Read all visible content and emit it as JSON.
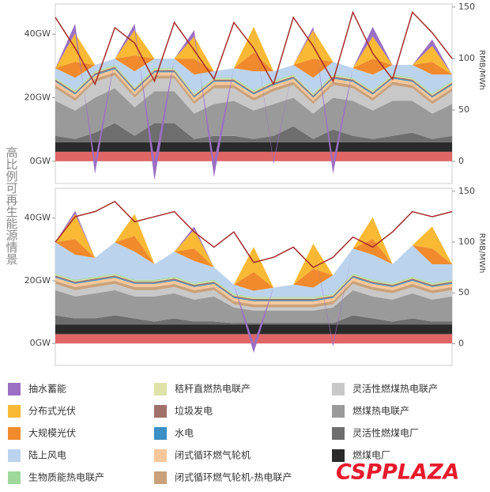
{
  "side_label": "高比例可再生能源情景",
  "watermark": "CSPPLAZA",
  "chart_data": [
    {
      "type": "area",
      "ylim": [
        -7,
        49.5
      ],
      "yticks": [
        {
          "value": 0,
          "label": "0GW"
        },
        {
          "value": 20,
          "label": "20GW"
        },
        {
          "value": 40,
          "label": "40GW"
        }
      ],
      "y2lim": [
        -21.5,
        153
      ],
      "y2ticks": [
        0,
        50,
        100,
        150
      ],
      "y2_label": "RMB/MWh",
      "series": [
        {
          "name": "抽水蓄能",
          "color": "#9b6fc4",
          "values": [
            0,
            3,
            -4,
            0,
            2,
            -6,
            0,
            2,
            -5,
            0,
            0,
            -1,
            0,
            1,
            -4,
            0,
            3,
            0,
            0,
            2,
            0
          ]
        },
        {
          "name": "分布式光伏",
          "color": "#f9b934",
          "values": [
            0,
            9,
            0,
            0,
            8,
            0,
            0,
            7,
            0,
            0,
            8,
            0,
            0,
            9,
            0,
            0,
            7,
            0,
            0,
            5,
            0
          ]
        },
        {
          "name": "大规模光伏",
          "color": "#f08a2c",
          "values": [
            0,
            5,
            0,
            0,
            5,
            0,
            0,
            5,
            0,
            0,
            6,
            0,
            0,
            6,
            0,
            0,
            5,
            0,
            0,
            4,
            0
          ]
        },
        {
          "name": "陆上风电",
          "color": "#bcd3ee",
          "values": [
            3,
            4,
            2,
            2,
            5,
            3,
            3,
            6,
            2,
            3,
            6,
            3,
            3,
            5,
            4,
            3,
            5,
            3,
            4,
            6,
            2
          ]
        },
        {
          "name": "生物质能热电联产",
          "color": "#9ed99b",
          "values": [
            0.3,
            0.3,
            0.3,
            0.3,
            0.3,
            0.3,
            0.3,
            0.3,
            0.3,
            0.3,
            0.3,
            0.3,
            0.3,
            0.3,
            0.3,
            0.3,
            0.3,
            0.3,
            0.3,
            0.3,
            0.3
          ]
        },
        {
          "name": "秸秆直燃热电联产",
          "color": "#dfe3a8",
          "values": [
            0.3,
            0.3,
            0.3,
            0.3,
            0.3,
            0.3,
            0.3,
            0.3,
            0.3,
            0.3,
            0.3,
            0.3,
            0.3,
            0.3,
            0.3,
            0.3,
            0.3,
            0.3,
            0.3,
            0.3,
            0.3
          ]
        },
        {
          "name": "垃圾发电",
          "color": "#a0706a",
          "values": [
            0.4,
            0.4,
            0.4,
            0.4,
            0.4,
            0.4,
            0.4,
            0.4,
            0.4,
            0.4,
            0.4,
            0.4,
            0.4,
            0.4,
            0.4,
            0.4,
            0.4,
            0.4,
            0.4,
            0.4,
            0.4
          ]
        },
        {
          "name": "水电",
          "color": "#3a8fc4",
          "values": [
            0.3,
            0.3,
            0.3,
            0.3,
            0.3,
            0.3,
            0.3,
            0.3,
            0.3,
            0.3,
            0.3,
            0.3,
            0.3,
            0.3,
            0.3,
            0.3,
            0.3,
            0.3,
            0.3,
            0.3,
            0.3
          ]
        },
        {
          "name": "闭式循环燃气轮机",
          "color": "#f7c79a",
          "values": [
            1,
            1,
            1,
            1,
            1,
            1,
            1,
            1,
            1,
            1,
            1,
            1,
            1,
            1,
            1,
            1,
            1,
            1,
            1,
            1,
            1
          ]
        },
        {
          "name": "闭式循环燃气轮机-热电联产",
          "color": "#c9a27c",
          "values": [
            1,
            1,
            1,
            1,
            1,
            1,
            1,
            1,
            1,
            1,
            1,
            1,
            1,
            1,
            1,
            1,
            1,
            1,
            1,
            1,
            1
          ]
        },
        {
          "name": "灵活性燃煤热电联产",
          "color": "#c8c8c8",
          "values": [
            4,
            3,
            5,
            4,
            3,
            4,
            4,
            3,
            5,
            4,
            3,
            4,
            4,
            3,
            4,
            4,
            3,
            5,
            4,
            3,
            4
          ]
        },
        {
          "name": "燃煤热电联产",
          "color": "#9a9a9a",
          "values": [
            11,
            9,
            11,
            11,
            9,
            10,
            10,
            8,
            10,
            11,
            9,
            10,
            9,
            8,
            10,
            11,
            9,
            11,
            10,
            8,
            10
          ]
        },
        {
          "name": "灵活性燃煤电厂",
          "color": "#6e6e6e",
          "values": [
            2,
            1,
            3,
            6,
            2,
            6,
            6,
            1,
            2,
            2,
            1,
            2,
            5,
            1,
            4,
            2,
            1,
            2,
            3,
            1,
            2
          ]
        },
        {
          "name": "燃煤电厂",
          "color": "#2a2a2a",
          "values": [
            3,
            3,
            3,
            3,
            3,
            3,
            3,
            3,
            3,
            3,
            3,
            3,
            3,
            3,
            3,
            3,
            3,
            3,
            3,
            3,
            3
          ]
        },
        {
          "color": "#e06666",
          "values": [
            3,
            3,
            3,
            3,
            3,
            3,
            3,
            3,
            3,
            3,
            3,
            3,
            3,
            3,
            3,
            3,
            3,
            3,
            3,
            3,
            3
          ]
        },
        {
          "color": "#a52a2a",
          "axis": "y2",
          "values": [
            140,
            110,
            75,
            130,
            115,
            78,
            135,
            108,
            80,
            135,
            110,
            75,
            140,
            112,
            78,
            145,
            105,
            80,
            145,
            125,
            100
          ]
        }
      ]
    },
    {
      "type": "area",
      "ylim": [
        -7,
        49.5
      ],
      "yticks": [
        {
          "value": 0,
          "label": "0GW"
        },
        {
          "value": 20,
          "label": "20GW"
        },
        {
          "value": 40,
          "label": "40GW"
        }
      ],
      "y2lim": [
        -21.5,
        153
      ],
      "y2ticks": [
        0,
        50,
        100,
        150
      ],
      "y2_label": "RMB/MWh",
      "series": [
        {
          "name": "抽水蓄能",
          "color": "#9b6fc4",
          "values": [
            0,
            1,
            0,
            0,
            0,
            0,
            0,
            1,
            0,
            0,
            -3,
            0,
            0,
            0,
            -1,
            0,
            0,
            0,
            0,
            0,
            0
          ]
        },
        {
          "name": "分布式光伏",
          "color": "#f9b934",
          "values": [
            0,
            8,
            0,
            0,
            7,
            0,
            0,
            6,
            0,
            0,
            8,
            0,
            0,
            8,
            0,
            0,
            7,
            0,
            0,
            7,
            0
          ]
        },
        {
          "name": "大规模光伏",
          "color": "#f08a2c",
          "values": [
            0,
            5,
            0,
            0,
            5,
            0,
            0,
            4,
            0,
            0,
            6,
            0,
            0,
            6,
            0,
            0,
            5,
            0,
            0,
            5,
            0
          ]
        },
        {
          "name": "陆上风电",
          "color": "#bcd3ee",
          "values": [
            10,
            8,
            6,
            10,
            9,
            5,
            8,
            7,
            4,
            3,
            2,
            3,
            4,
            3,
            6,
            8,
            8,
            6,
            10,
            6,
            5
          ]
        },
        {
          "name": "生物质能热电联产",
          "color": "#9ed99b",
          "values": [
            0.3,
            0.3,
            0.3,
            0.3,
            0.3,
            0.3,
            0.3,
            0.3,
            0.3,
            0.3,
            0.3,
            0.3,
            0.3,
            0.3,
            0.3,
            0.3,
            0.3,
            0.3,
            0.3,
            0.3,
            0.3
          ]
        },
        {
          "name": "秸秆直燃热电联产",
          "color": "#dfe3a8",
          "values": [
            0.3,
            0.3,
            0.3,
            0.3,
            0.3,
            0.3,
            0.3,
            0.3,
            0.3,
            0.3,
            0.3,
            0.3,
            0.3,
            0.3,
            0.3,
            0.3,
            0.3,
            0.3,
            0.3,
            0.3,
            0.3
          ]
        },
        {
          "name": "垃圾发电",
          "color": "#a0706a",
          "values": [
            0.4,
            0.4,
            0.4,
            0.4,
            0.4,
            0.4,
            0.4,
            0.4,
            0.4,
            0.4,
            0.4,
            0.4,
            0.4,
            0.4,
            0.4,
            0.4,
            0.4,
            0.4,
            0.4,
            0.4,
            0.4
          ]
        },
        {
          "name": "水电",
          "color": "#3a8fc4",
          "values": [
            0.3,
            0.3,
            0.3,
            0.3,
            0.3,
            0.3,
            0.3,
            0.3,
            0.3,
            0.3,
            0.3,
            0.3,
            0.3,
            0.3,
            0.3,
            0.3,
            0.3,
            0.3,
            0.3,
            0.3,
            0.3
          ]
        },
        {
          "name": "闭式循环燃气轮机",
          "color": "#f7c79a",
          "values": [
            1,
            1,
            1,
            1,
            1,
            1,
            1,
            1,
            1,
            1,
            1,
            1,
            1,
            1,
            1,
            1,
            1,
            1,
            1,
            1,
            1
          ]
        },
        {
          "name": "闭式循环燃气轮机-热电联产",
          "color": "#c9a27c",
          "values": [
            1,
            1,
            1,
            1,
            1,
            1,
            1,
            1,
            1,
            1,
            1,
            1,
            1,
            1,
            1,
            1,
            1,
            1,
            1,
            1,
            1
          ]
        },
        {
          "name": "灵活性燃煤热电联产",
          "color": "#c8c8c8",
          "values": [
            2,
            2,
            2,
            2,
            2,
            2,
            2,
            2,
            2,
            1,
            1,
            1,
            1,
            1,
            1,
            2,
            2,
            2,
            2,
            2,
            2
          ]
        },
        {
          "name": "燃煤热电联产",
          "color": "#9a9a9a",
          "values": [
            8,
            7,
            8,
            8,
            7,
            8,
            8,
            7,
            8,
            5,
            4,
            4,
            4,
            4,
            5,
            8,
            7,
            7,
            8,
            7,
            8
          ]
        },
        {
          "name": "灵活性燃煤电厂",
          "color": "#6e6e6e",
          "values": [
            3,
            2,
            2,
            3,
            2,
            1,
            2,
            1,
            1,
            0.5,
            0.5,
            0.5,
            0.5,
            0.5,
            0.5,
            3,
            2,
            1,
            2,
            1,
            1
          ]
        },
        {
          "name": "燃煤电厂",
          "color": "#2a2a2a",
          "values": [
            3,
            3,
            3,
            3,
            3,
            3,
            3,
            3,
            3,
            3,
            3,
            3,
            3,
            3,
            3,
            3,
            3,
            3,
            3,
            3,
            3
          ]
        },
        {
          "color": "#e06666",
          "values": [
            3,
            3,
            3,
            3,
            3,
            3,
            3,
            3,
            3,
            3,
            3,
            3,
            3,
            3,
            3,
            3,
            3,
            3,
            3,
            3,
            3
          ]
        },
        {
          "color": "#a52a2a",
          "axis": "y2",
          "values": [
            100,
            125,
            130,
            140,
            120,
            125,
            130,
            110,
            95,
            110,
            80,
            85,
            95,
            75,
            85,
            105,
            95,
            110,
            130,
            125,
            130
          ]
        }
      ]
    }
  ]
}
